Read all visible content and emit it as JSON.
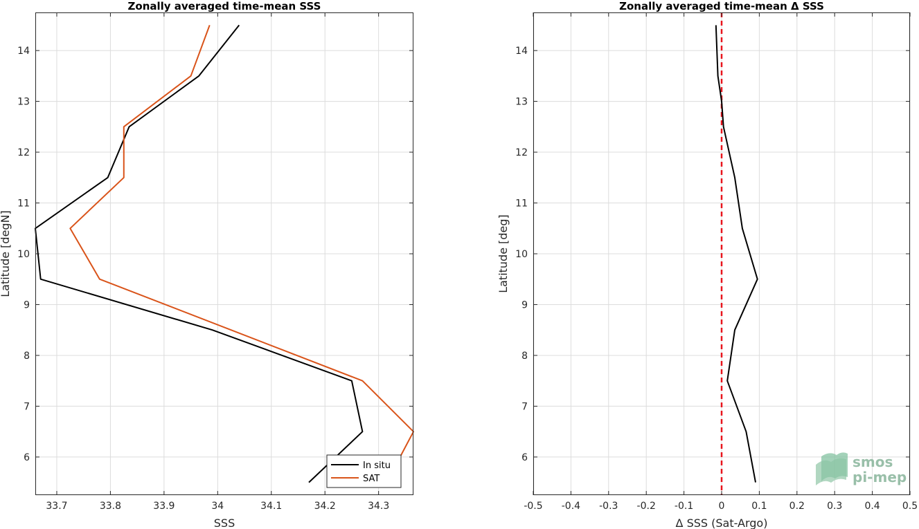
{
  "chart_data": [
    {
      "type": "line",
      "title": "Zonally averaged time-mean SSS",
      "xlabel": "SSS",
      "ylabel": "Latitude [degN]",
      "xlim": [
        33.66,
        34.365
      ],
      "ylim": [
        5.25,
        14.75
      ],
      "xticks": [
        "33.7",
        "33.8",
        "33.9",
        "34",
        "34.1",
        "34.2",
        "34.3"
      ],
      "xtick_values": [
        33.7,
        33.8,
        33.9,
        34.0,
        34.1,
        34.2,
        34.3
      ],
      "yticks": [
        "6",
        "7",
        "8",
        "9",
        "10",
        "11",
        "12",
        "13",
        "14"
      ],
      "ytick_values": [
        6,
        7,
        8,
        9,
        10,
        11,
        12,
        13,
        14
      ],
      "grid": true,
      "legend_position": "bottom-right",
      "series": [
        {
          "name": "In situ",
          "color": "#000000",
          "points": [
            [
              34.17,
              5.5
            ],
            [
              34.27,
              6.5
            ],
            [
              34.25,
              7.5
            ],
            [
              33.99,
              8.5
            ],
            [
              33.67,
              9.5
            ],
            [
              33.66,
              10.5
            ],
            [
              33.795,
              11.5
            ],
            [
              33.835,
              12.5
            ],
            [
              33.965,
              13.5
            ],
            [
              34.04,
              14.5
            ]
          ]
        },
        {
          "name": "SAT",
          "color": "#d95319",
          "points": [
            [
              34.33,
              5.8
            ],
            [
              34.365,
              6.5
            ],
            [
              34.27,
              7.5
            ],
            [
              33.78,
              9.5
            ],
            [
              33.725,
              10.5
            ],
            [
              33.825,
              11.5
            ],
            [
              33.825,
              12.5
            ],
            [
              33.95,
              13.5
            ],
            [
              33.985,
              14.5
            ]
          ]
        }
      ]
    },
    {
      "type": "line",
      "title": "Zonally averaged time-mean Δ SSS",
      "xlabel": "Δ SSS (Sat-Argo)",
      "ylabel": "Latitude [deg]",
      "xlim": [
        -0.5,
        0.5
      ],
      "ylim": [
        5.25,
        14.75
      ],
      "xticks": [
        "-0.5",
        "-0.4",
        "-0.3",
        "-0.2",
        "-0.1",
        "0",
        "0.1",
        "0.2",
        "0.3",
        "0.4",
        "0.5"
      ],
      "xtick_values": [
        -0.5,
        -0.4,
        -0.3,
        -0.2,
        -0.1,
        0,
        0.1,
        0.2,
        0.3,
        0.4,
        0.5
      ],
      "yticks": [
        "6",
        "7",
        "8",
        "9",
        "10",
        "11",
        "12",
        "13",
        "14"
      ],
      "ytick_values": [
        6,
        7,
        8,
        9,
        10,
        11,
        12,
        13,
        14
      ],
      "grid": true,
      "reference_line": {
        "x": 0,
        "color": "#e8141c",
        "style": "dashed"
      },
      "series": [
        {
          "color": "#000000",
          "points": [
            [
              0.09,
              5.5
            ],
            [
              0.065,
              6.5
            ],
            [
              0.015,
              7.5
            ],
            [
              0.035,
              8.5
            ],
            [
              0.095,
              9.5
            ],
            [
              0.055,
              10.5
            ],
            [
              0.035,
              11.5
            ],
            [
              0.005,
              12.5
            ],
            [
              0.0,
              13.0
            ],
            [
              -0.01,
              13.5
            ],
            [
              -0.015,
              14.5
            ]
          ]
        }
      ]
    }
  ],
  "watermark": {
    "line1": "smos",
    "line2": "pi-mep"
  }
}
